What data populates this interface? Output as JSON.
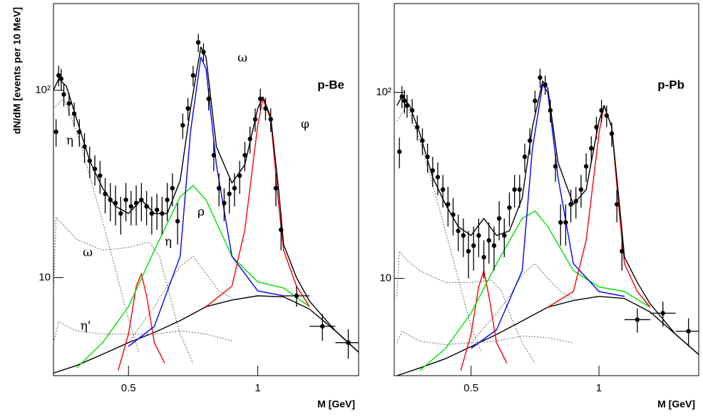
{
  "chart_data": [
    {
      "type": "line",
      "yscale": "log",
      "label": "p-Be",
      "ylabel": "dN/dM [events per 10 MeV]",
      "xlabel": "M [GeV]",
      "xlim": [
        0.21,
        1.39
      ],
      "ylim": [
        3,
        290
      ],
      "xticks": [
        0.5,
        1
      ],
      "yticks": [
        10,
        {
          "value": 100,
          "label": "10²"
        }
      ],
      "annotations": [
        "ω",
        "φ",
        "η",
        "ρ",
        "η",
        "ω",
        "η'"
      ],
      "series": [
        {
          "style": "line",
          "color": "#000000",
          "x": [
            0.21,
            0.3,
            0.4,
            0.5,
            0.6,
            0.7,
            0.8,
            0.9,
            1.0,
            1.1,
            1.2,
            1.3,
            1.39
          ],
          "values": [
            3.1,
            3.4,
            3.9,
            4.5,
            5.1,
            5.9,
            7.0,
            7.6,
            8.0,
            7.9,
            6.8,
            5.2,
            4.0
          ]
        },
        {
          "style": "dash",
          "color": "#777777",
          "x": [
            0.21,
            0.25,
            0.3,
            0.35,
            0.4,
            0.45,
            0.5,
            0.54
          ],
          "values": [
            80,
            90,
            60,
            35,
            20,
            11,
            6,
            4
          ]
        },
        {
          "style": "dash",
          "color": "#777777",
          "x": [
            0.21,
            0.22,
            0.25,
            0.3,
            0.4,
            0.5,
            0.58,
            0.62,
            0.66,
            0.7,
            0.75
          ],
          "values": [
            8,
            21,
            19,
            16,
            14,
            14.5,
            15.5,
            13,
            8,
            5,
            3.5
          ]
        },
        {
          "style": "dash",
          "color": "#777777",
          "x": [
            0.21,
            0.23,
            0.3,
            0.4,
            0.5,
            0.6,
            0.7,
            0.8,
            0.9
          ],
          "values": [
            4.5,
            5.8,
            5.2,
            5.0,
            5.0,
            5.0,
            5.2,
            5.0,
            4.6
          ]
        },
        {
          "style": "dash",
          "color": "#777777",
          "x": [
            0.5,
            0.6,
            0.65,
            0.7,
            0.75,
            0.8,
            0.85,
            0.9
          ],
          "values": [
            4.5,
            7,
            9,
            11.5,
            13,
            10.5,
            8.5,
            7.8
          ]
        },
        {
          "style": "line",
          "color": "#ff0000",
          "x": [
            0.46,
            0.5,
            0.53,
            0.55,
            0.57,
            0.6,
            0.64
          ],
          "values": [
            3.2,
            5,
            9,
            10.5,
            8,
            4.5,
            3.5
          ]
        },
        {
          "style": "line",
          "color": "#00e000",
          "x": [
            0.3,
            0.4,
            0.5,
            0.6,
            0.7,
            0.75,
            0.8,
            0.9,
            1.0,
            1.1,
            1.2
          ],
          "values": [
            3.3,
            4.5,
            7,
            14,
            27,
            31,
            26,
            13,
            9.5,
            8.8,
            7
          ]
        },
        {
          "style": "line",
          "color": "#0000ff",
          "x": [
            0.5,
            0.6,
            0.7,
            0.74,
            0.78,
            0.8,
            0.84,
            0.9,
            1.0,
            1.1
          ],
          "values": [
            4.3,
            5.5,
            13,
            60,
            150,
            130,
            40,
            13,
            8.5,
            8
          ]
        },
        {
          "style": "line",
          "color": "#ff0000",
          "x": [
            0.8,
            0.9,
            0.95,
            1.0,
            1.02,
            1.05,
            1.08,
            1.1,
            1.15,
            1.2
          ],
          "values": [
            7,
            9,
            18,
            65,
            90,
            70,
            25,
            14,
            9,
            7
          ]
        },
        {
          "style": "line",
          "color": "#000000",
          "x": [
            0.21,
            0.23,
            0.26,
            0.3,
            0.35,
            0.4,
            0.45,
            0.5,
            0.55,
            0.6,
            0.65,
            0.7,
            0.74,
            0.78,
            0.8,
            0.84,
            0.9,
            0.95,
            1.0,
            1.02,
            1.05,
            1.08,
            1.1,
            1.15,
            1.2,
            1.3,
            1.39
          ],
          "values": [
            100,
            115,
            105,
            70,
            42,
            30,
            24,
            22,
            26,
            22,
            22,
            33,
            80,
            170,
            150,
            50,
            32,
            40,
            80,
            92,
            72,
            30,
            15,
            10,
            7.5,
            5.2,
            4.0
          ]
        },
        {
          "style": "points",
          "color": "#000000",
          "x": [
            0.22,
            0.23,
            0.24,
            0.25,
            0.27,
            0.29,
            0.31,
            0.33,
            0.35,
            0.37,
            0.39,
            0.41,
            0.43,
            0.45,
            0.47,
            0.49,
            0.51,
            0.53,
            0.55,
            0.57,
            0.59,
            0.61,
            0.63,
            0.65,
            0.67,
            0.69,
            0.71,
            0.73,
            0.75,
            0.77,
            0.79,
            0.81,
            0.83,
            0.85,
            0.87,
            0.89,
            0.91,
            0.93,
            0.95,
            0.97,
            0.99,
            1.01,
            1.03,
            1.05,
            1.07,
            1.09
          ],
          "values": [
            60,
            120,
            115,
            95,
            85,
            75,
            60,
            50,
            42,
            38,
            35,
            28,
            26,
            25,
            22,
            26,
            24,
            25,
            26,
            24,
            22,
            23,
            22,
            26,
            30,
            20,
            65,
            80,
            120,
            180,
            160,
            90,
            45,
            30,
            25,
            28,
            30,
            35,
            45,
            55,
            70,
            90,
            80,
            70,
            30,
            18
          ],
          "y_err": [
            10,
            15,
            15,
            13,
            12,
            11,
            10,
            9,
            8,
            7,
            7,
            6,
            6,
            6,
            5,
            6,
            5,
            6,
            6,
            5,
            5,
            5,
            5,
            6,
            6,
            5,
            10,
            11,
            15,
            20,
            18,
            12,
            8,
            6,
            5,
            6,
            6,
            7,
            8,
            9,
            10,
            12,
            11,
            10,
            6,
            4
          ]
        },
        {
          "style": "points",
          "color": "#000000",
          "x": [
            1.15,
            1.25,
            1.35
          ],
          "values": [
            8,
            5.5,
            4.5
          ],
          "y_err": [
            1,
            0.9,
            0.8
          ],
          "x_err": [
            0.05,
            0.05,
            0.05
          ]
        }
      ]
    },
    {
      "type": "line",
      "yscale": "log",
      "label": "p-Pb",
      "xlabel": "M [GeV]",
      "xlim": [
        0.2,
        1.39
      ],
      "ylim": [
        3,
        300
      ],
      "xticks": [
        0.5,
        1
      ],
      "yticks": [
        10,
        {
          "value": 100,
          "label": "10²"
        }
      ],
      "series": [
        {
          "style": "line",
          "color": "#000000",
          "x": [
            0.21,
            0.3,
            0.4,
            0.5,
            0.6,
            0.7,
            0.8,
            0.9,
            1.0,
            1.1,
            1.2,
            1.3,
            1.39
          ],
          "values": [
            3.0,
            3.3,
            3.7,
            4.3,
            5.0,
            5.9,
            7.0,
            7.6,
            8.0,
            7.8,
            6.6,
            5.0,
            3.9
          ]
        },
        {
          "style": "dash",
          "color": "#777777",
          "x": [
            0.21,
            0.25,
            0.3,
            0.35,
            0.4,
            0.45,
            0.5,
            0.54
          ],
          "values": [
            70,
            85,
            55,
            32,
            18,
            10,
            5.5,
            4
          ]
        },
        {
          "style": "dash",
          "color": "#777777",
          "x": [
            0.21,
            0.22,
            0.25,
            0.3,
            0.4,
            0.5,
            0.58,
            0.62,
            0.66,
            0.7,
            0.75
          ],
          "values": [
            8,
            14,
            12.5,
            11,
            9.5,
            9.5,
            9.8,
            8.5,
            6,
            4.5,
            3.5
          ]
        },
        {
          "style": "dash",
          "color": "#777777",
          "x": [
            0.21,
            0.23,
            0.3,
            0.4,
            0.5,
            0.6,
            0.7,
            0.8,
            0.9
          ],
          "values": [
            4.5,
            5.2,
            4.6,
            4.4,
            4.5,
            4.6,
            4.9,
            4.8,
            4.5
          ]
        },
        {
          "style": "dash",
          "color": "#777777",
          "x": [
            0.5,
            0.6,
            0.65,
            0.7,
            0.75,
            0.8,
            0.85,
            0.9
          ],
          "values": [
            4.5,
            6.5,
            8,
            10.5,
            12,
            10,
            8.5,
            7.8
          ]
        },
        {
          "style": "line",
          "color": "#ff0000",
          "x": [
            0.46,
            0.5,
            0.53,
            0.55,
            0.57,
            0.6,
            0.64
          ],
          "values": [
            3.2,
            5,
            9,
            11,
            8,
            4.5,
            3.5
          ]
        },
        {
          "style": "line",
          "color": "#00e000",
          "x": [
            0.3,
            0.4,
            0.5,
            0.6,
            0.7,
            0.75,
            0.8,
            0.9,
            1.0,
            1.1,
            1.2
          ],
          "values": [
            3.2,
            4.2,
            6.5,
            12,
            21,
            23,
            19,
            11,
            9,
            8.5,
            7
          ]
        },
        {
          "style": "line",
          "color": "#0000ff",
          "x": [
            0.5,
            0.6,
            0.7,
            0.74,
            0.78,
            0.8,
            0.84,
            0.9,
            1.0,
            1.1
          ],
          "values": [
            4.2,
            5.3,
            11,
            50,
            110,
            100,
            35,
            12,
            8.5,
            8
          ]
        },
        {
          "style": "line",
          "color": "#ff0000",
          "x": [
            0.8,
            0.9,
            0.95,
            1.0,
            1.02,
            1.05,
            1.08,
            1.1,
            1.15,
            1.2
          ],
          "values": [
            7,
            8.5,
            16,
            60,
            85,
            65,
            22,
            12,
            8.5,
            7
          ]
        },
        {
          "style": "line",
          "color": "#000000",
          "x": [
            0.21,
            0.23,
            0.26,
            0.3,
            0.35,
            0.4,
            0.45,
            0.5,
            0.55,
            0.6,
            0.65,
            0.7,
            0.74,
            0.78,
            0.8,
            0.84,
            0.9,
            0.95,
            1.0,
            1.02,
            1.05,
            1.08,
            1.1,
            1.15,
            1.2,
            1.3,
            1.39
          ],
          "values": [
            85,
            95,
            85,
            60,
            35,
            25,
            19,
            17,
            21,
            17,
            18,
            27,
            65,
            115,
            105,
            42,
            25,
            30,
            70,
            85,
            65,
            25,
            13,
            9.5,
            7.3,
            5,
            3.9
          ]
        },
        {
          "style": "points",
          "color": "#000000",
          "x": [
            0.22,
            0.23,
            0.24,
            0.25,
            0.27,
            0.29,
            0.31,
            0.33,
            0.35,
            0.37,
            0.39,
            0.41,
            0.43,
            0.45,
            0.47,
            0.49,
            0.51,
            0.53,
            0.55,
            0.57,
            0.59,
            0.61,
            0.63,
            0.65,
            0.67,
            0.69,
            0.71,
            0.73,
            0.75,
            0.77,
            0.79,
            0.81,
            0.83,
            0.85,
            0.87,
            0.89,
            0.91,
            0.93,
            0.95,
            0.97,
            0.99,
            1.01,
            1.03,
            1.05,
            1.07,
            1.09
          ],
          "values": [
            48,
            95,
            90,
            85,
            80,
            65,
            55,
            45,
            38,
            35,
            30,
            25,
            22,
            18,
            17,
            14,
            15,
            17,
            13,
            16,
            15,
            21,
            17,
            24,
            30,
            30,
            45,
            55,
            90,
            120,
            110,
            80,
            40,
            20,
            20,
            25,
            26,
            30,
            40,
            50,
            65,
            80,
            75,
            60,
            25,
            14
          ],
          "y_err": [
            9,
            13,
            13,
            12,
            12,
            10,
            9,
            8,
            7,
            7,
            6,
            6,
            5,
            4,
            4,
            4,
            4,
            4,
            3,
            4,
            4,
            5,
            4,
            5,
            6,
            6,
            8,
            9,
            12,
            14,
            13,
            11,
            7,
            5,
            5,
            5,
            5,
            6,
            7,
            8,
            9,
            11,
            10,
            9,
            5,
            3
          ]
        },
        {
          "style": "points",
          "color": "#000000",
          "x": [
            1.15,
            1.25,
            1.35
          ],
          "values": [
            6,
            6.5,
            5.2
          ],
          "y_err": [
            0.9,
            1,
            0.9
          ],
          "x_err": [
            0.05,
            0.05,
            0.05
          ]
        }
      ]
    }
  ]
}
